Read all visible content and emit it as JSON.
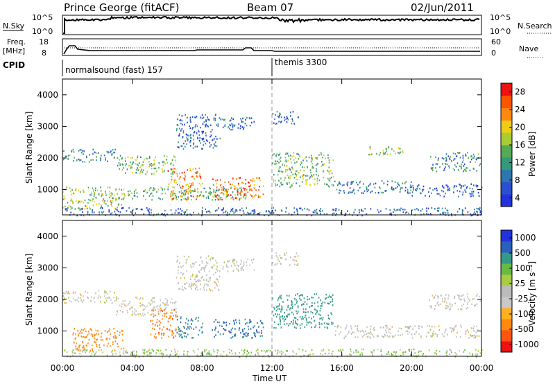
{
  "header": {
    "station": "Prince George (fitACF)",
    "beam": "Beam 07",
    "date": "02/Jun/2011"
  },
  "strips": {
    "nsky_label": "N.Sky",
    "nsky_ticks": [
      "10^5",
      "10^0"
    ],
    "nsearch_label": "N.Search",
    "nsearch_ticks": [
      "10^5",
      "10^0"
    ],
    "freq_label_1": "Freq.",
    "freq_label_2": "[MHz]",
    "freq_ticks": [
      "18",
      "8"
    ],
    "nave_label": "Nave",
    "nave_ticks": [
      "60",
      "0"
    ],
    "cpid_label": "CPID",
    "cpid_segments": [
      {
        "label": "normalsound (fast) 157",
        "start_hour": 0
      },
      {
        "label": "themis 3300",
        "start_hour": 12
      }
    ]
  },
  "colors": {
    "power_scale": [
      "#2233dd",
      "#2a4fd0",
      "#2c77b0",
      "#33997a",
      "#55aa55",
      "#aacc33",
      "#eecc11",
      "#ff8811",
      "#ff5500",
      "#ee1111"
    ],
    "velocity_scale": [
      "#2233dd",
      "#2b5fbf",
      "#339988",
      "#66bb44",
      "#aacc44",
      "#bbbbbb",
      "#c8c8c8",
      "#ffb020",
      "#ff8811",
      "#ff5511",
      "#ee1111"
    ]
  },
  "chart_data": [
    {
      "type": "heatmap",
      "name": "power-panel",
      "ylabel": "Slant Range [km]",
      "xlabel": "",
      "xlim": [
        0,
        24
      ],
      "ylim": [
        200,
        4500
      ],
      "y_ticks": [
        1000,
        2000,
        3000,
        4000
      ],
      "x_ticks": [
        "00:00",
        "04:00",
        "08:00",
        "12:00",
        "16:00",
        "20:00",
        "00:00"
      ],
      "colorbar": {
        "label": "Power [dB]",
        "range": [
          0,
          30
        ],
        "ticks": [
          4,
          8,
          12,
          16,
          20,
          24,
          28
        ]
      },
      "scatter_regions": [
        {
          "t0": 0.0,
          "t1": 3.0,
          "r0": 1900,
          "r1": 2300,
          "p": 10
        },
        {
          "t0": 3.0,
          "t1": 6.5,
          "r0": 1500,
          "r1": 2100,
          "p": 14
        },
        {
          "t0": 0.0,
          "t1": 3.5,
          "r0": 400,
          "r1": 1100,
          "p": 16
        },
        {
          "t0": 3.5,
          "t1": 10.5,
          "r0": 700,
          "r1": 1100,
          "p": 12
        },
        {
          "t0": 6.0,
          "t1": 8.0,
          "r0": 700,
          "r1": 1700,
          "p": 22
        },
        {
          "t0": 8.5,
          "t1": 11.5,
          "r0": 700,
          "r1": 1400,
          "p": 24
        },
        {
          "t0": 6.5,
          "t1": 9.0,
          "r0": 2300,
          "r1": 3400,
          "p": 6
        },
        {
          "t0": 9.0,
          "t1": 11.0,
          "r0": 2900,
          "r1": 3300,
          "p": 5
        },
        {
          "t0": 12.0,
          "t1": 15.5,
          "r0": 1100,
          "r1": 2200,
          "p": 14
        },
        {
          "t0": 12.0,
          "t1": 13.5,
          "r0": 3100,
          "r1": 3500,
          "p": 6
        },
        {
          "t0": 15.5,
          "t1": 20.0,
          "r0": 900,
          "r1": 1300,
          "p": 8
        },
        {
          "t0": 20.0,
          "t1": 24.0,
          "r0": 800,
          "r1": 1200,
          "p": 6
        },
        {
          "t0": 21.0,
          "t1": 24.0,
          "r0": 1600,
          "r1": 2200,
          "p": 10
        },
        {
          "t0": 17.5,
          "t1": 19.5,
          "r0": 2100,
          "r1": 2400,
          "p": 14
        },
        {
          "t0": 0.0,
          "t1": 24.0,
          "r0": 200,
          "r1": 450,
          "p": 6
        }
      ]
    },
    {
      "type": "heatmap",
      "name": "velocity-panel",
      "ylabel": "Slant Range [km]",
      "xlabel": "Time UT",
      "xlim": [
        0,
        24
      ],
      "ylim": [
        200,
        4500
      ],
      "y_ticks": [
        1000,
        2000,
        3000,
        4000
      ],
      "x_ticks": [
        "00:00",
        "04:00",
        "08:00",
        "12:00",
        "16:00",
        "20:00",
        "00:00"
      ],
      "colorbar": {
        "label": "Velocity [m s⁻¹]",
        "ticks": [
          1000,
          500,
          100,
          25,
          -25,
          -100,
          -500,
          -1000
        ]
      },
      "scatter_regions": [
        {
          "t0": 0.0,
          "t1": 3.0,
          "r0": 1900,
          "r1": 2300,
          "v": 0
        },
        {
          "t0": 3.0,
          "t1": 6.5,
          "r0": 1500,
          "r1": 2100,
          "v": 0
        },
        {
          "t0": 0.5,
          "t1": 3.5,
          "r0": 400,
          "r1": 1100,
          "v": -300
        },
        {
          "t0": 5.0,
          "t1": 6.5,
          "r0": 800,
          "r1": 1700,
          "v": -400
        },
        {
          "t0": 6.5,
          "t1": 8.0,
          "r0": 800,
          "r1": 1500,
          "v": 400
        },
        {
          "t0": 8.5,
          "t1": 11.5,
          "r0": 800,
          "r1": 1400,
          "v": 600
        },
        {
          "t0": 6.5,
          "t1": 9.0,
          "r0": 2300,
          "r1": 3400,
          "v": 0
        },
        {
          "t0": 9.0,
          "t1": 11.0,
          "r0": 2900,
          "r1": 3300,
          "v": 0
        },
        {
          "t0": 12.0,
          "t1": 15.5,
          "r0": 1100,
          "r1": 2200,
          "v": 300
        },
        {
          "t0": 12.0,
          "t1": 13.5,
          "r0": 3100,
          "r1": 3500,
          "v": 0
        },
        {
          "t0": 15.5,
          "t1": 24.0,
          "r0": 800,
          "r1": 1200,
          "v": 0
        },
        {
          "t0": 21.0,
          "t1": 24.0,
          "r0": 1700,
          "r1": 2200,
          "v": 0
        },
        {
          "t0": 0.0,
          "t1": 24.0,
          "r0": 200,
          "r1": 450,
          "v": 40
        }
      ]
    }
  ]
}
